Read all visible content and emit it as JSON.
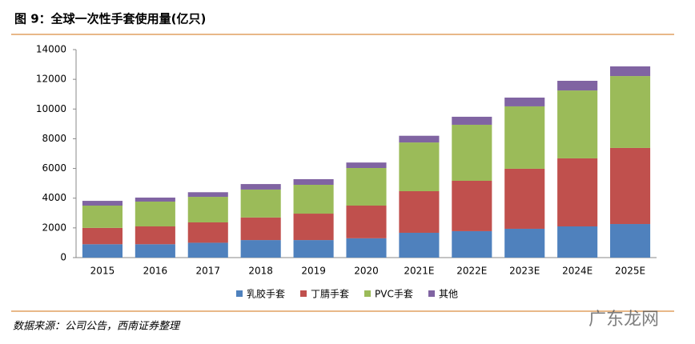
{
  "title": "图 9：全球一次性手套使用量(亿只)",
  "source": "数据来源：公司公告，西南证券整理",
  "watermark": "广东龙网",
  "chart_data": {
    "type": "stacked-bar",
    "categories": [
      "2015",
      "2016",
      "2017",
      "2018",
      "2019",
      "2020",
      "2021E",
      "2022E",
      "2023E",
      "2024E",
      "2025E"
    ],
    "series": [
      {
        "name": "乳胶手套",
        "color": "#4f81bd",
        "values": [
          900,
          900,
          1000,
          1180,
          1180,
          1300,
          1670,
          1780,
          1940,
          2100,
          2260
        ]
      },
      {
        "name": "丁腈手套",
        "color": "#c0504d",
        "values": [
          1100,
          1200,
          1370,
          1520,
          1780,
          2200,
          2800,
          3390,
          4040,
          4580,
          5120
        ]
      },
      {
        "name": "PVC手套",
        "color": "#9bbb59",
        "values": [
          1500,
          1670,
          1720,
          1880,
          1940,
          2530,
          3280,
          3770,
          4200,
          4570,
          4840
        ]
      },
      {
        "name": "其他",
        "color": "#8064a2",
        "values": [
          320,
          270,
          310,
          370,
          380,
          370,
          450,
          540,
          590,
          650,
          650
        ]
      }
    ],
    "ylim": [
      0,
      14000
    ],
    "yticks": [
      0,
      2000,
      4000,
      6000,
      8000,
      10000,
      12000,
      14000
    ],
    "grid": false,
    "legend": "bottom"
  }
}
